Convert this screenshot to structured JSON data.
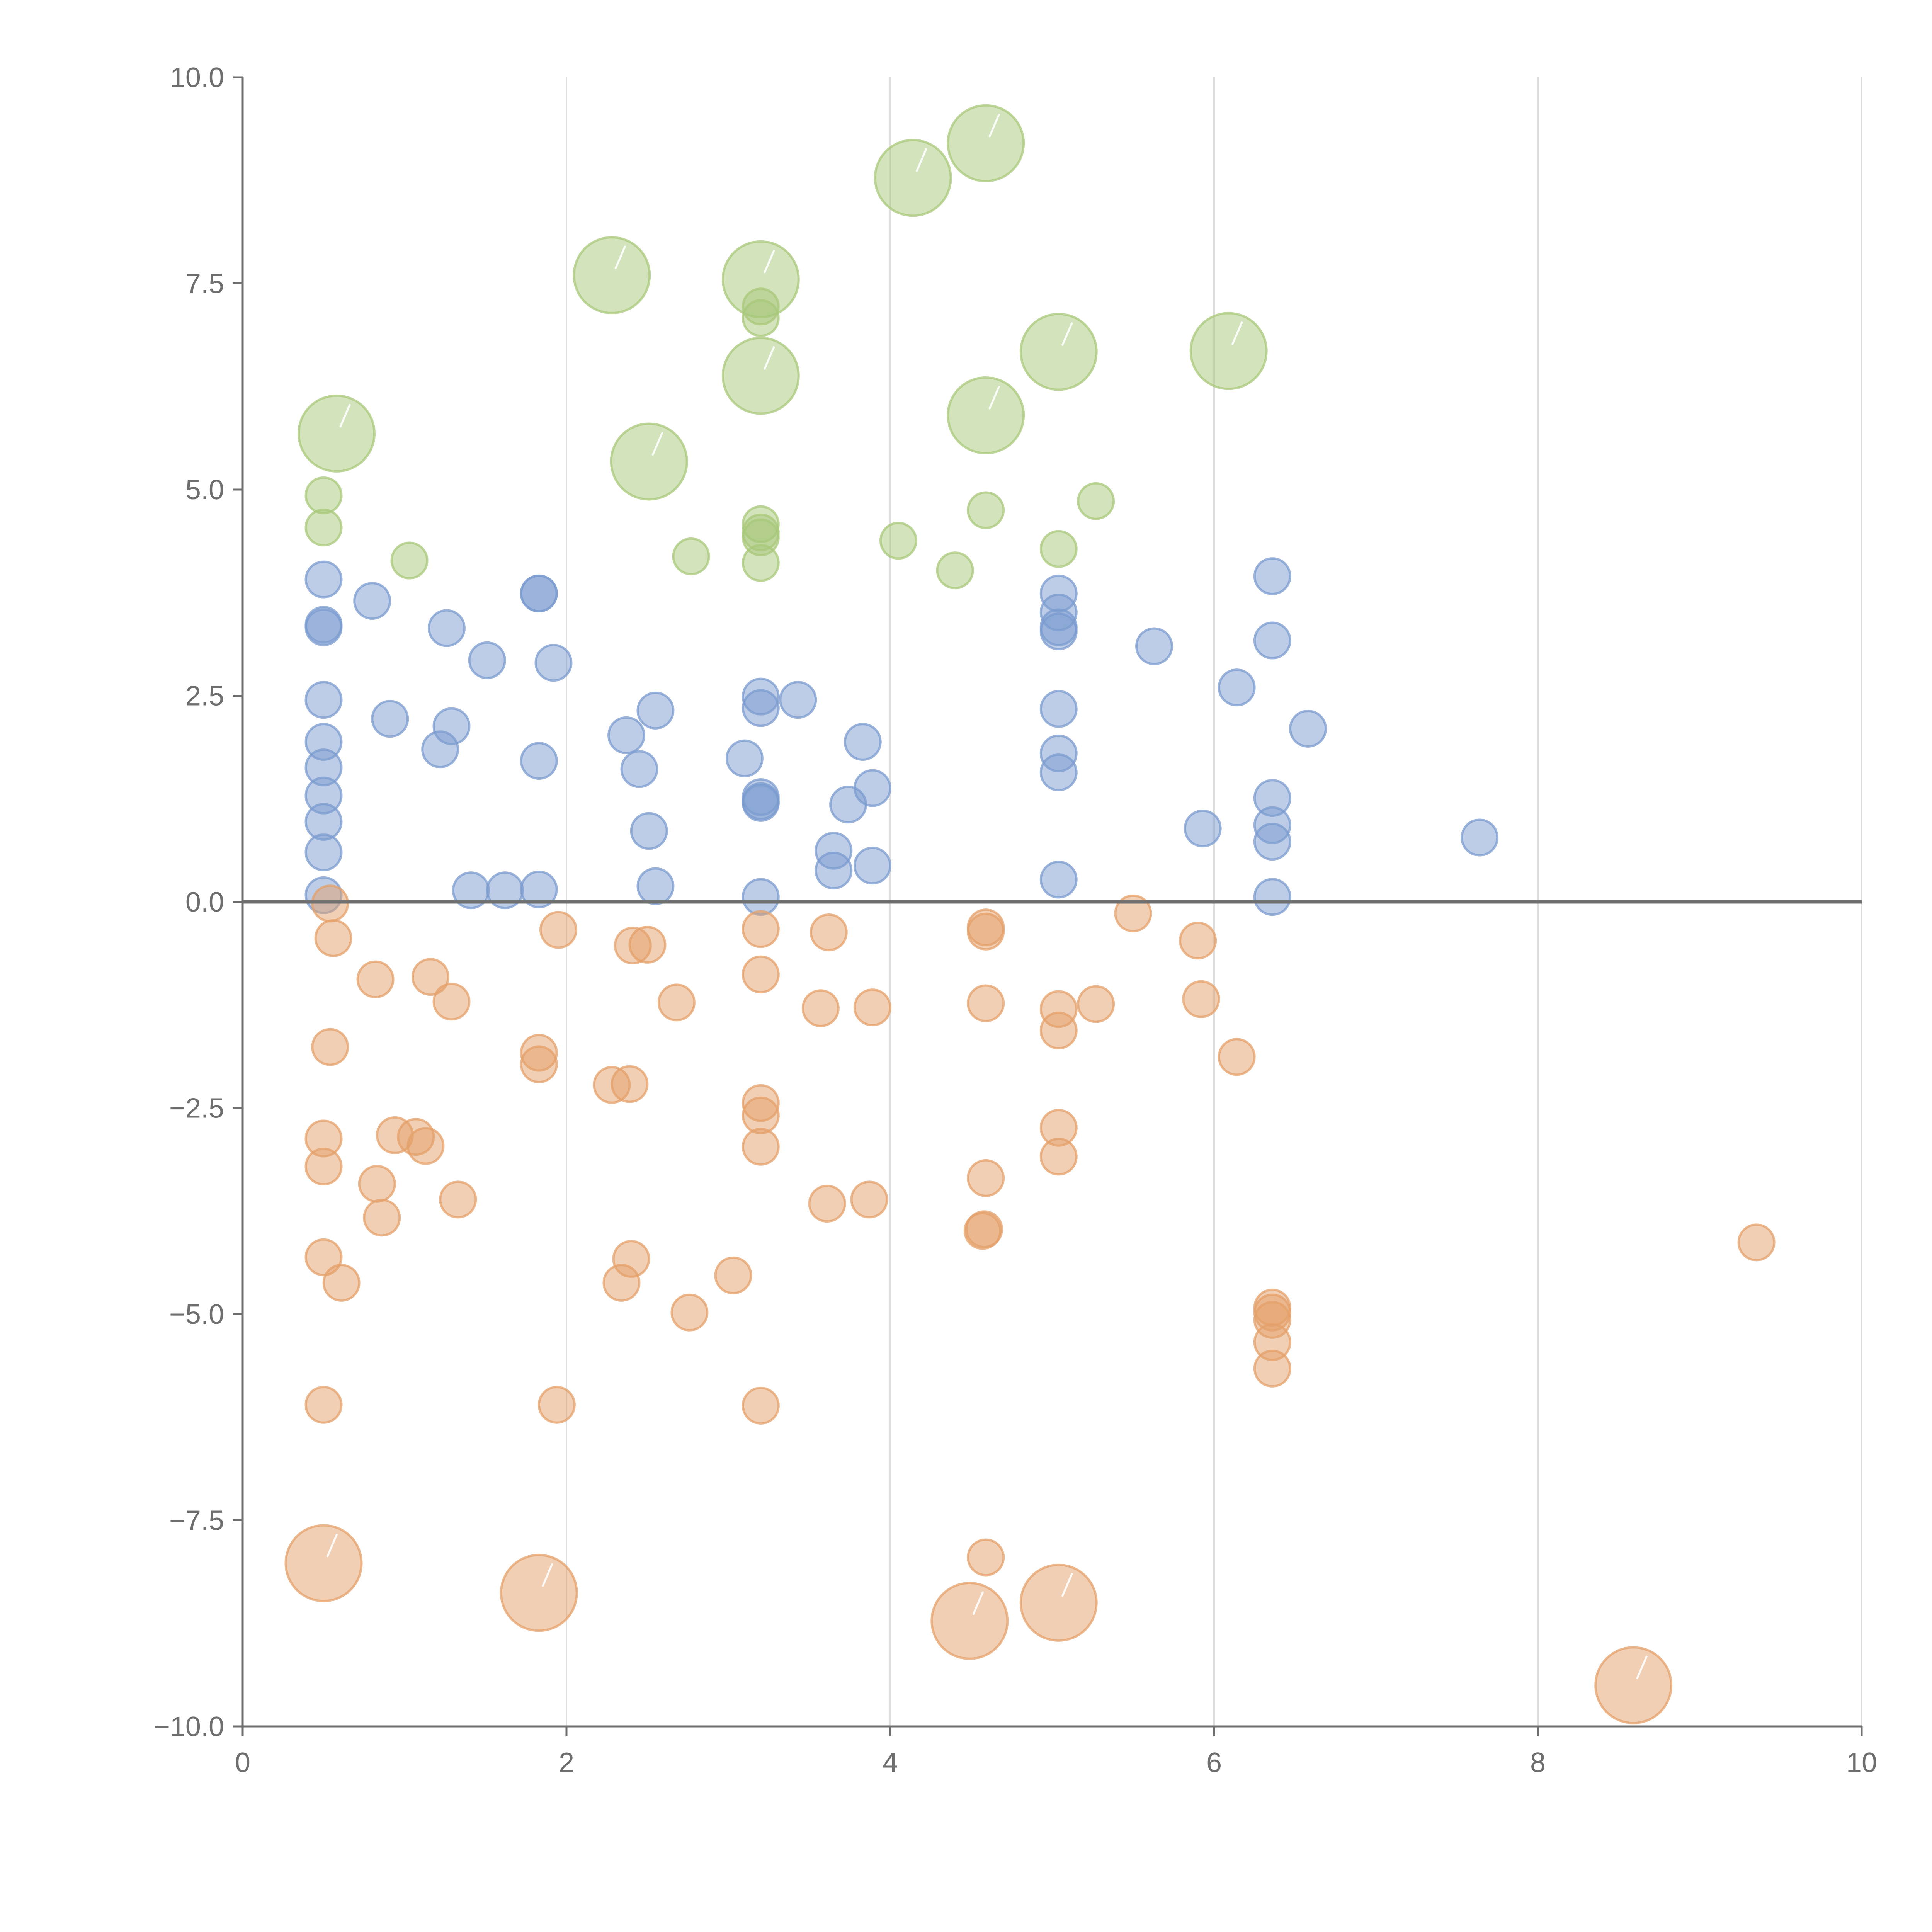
{
  "chart_data": {
    "type": "scatter",
    "title": "",
    "xlabel": "",
    "ylabel": "",
    "xlim": [
      0,
      10
    ],
    "ylim": [
      -10,
      10
    ],
    "x_ticks": [
      0,
      2,
      4,
      6,
      8,
      10
    ],
    "x_tick_labels": [
      "0",
      "2",
      "4",
      "6",
      "8",
      "10"
    ],
    "y_ticks": [
      10,
      7.5,
      5,
      2.5,
      0,
      -2.5,
      -5,
      -7.5,
      -10
    ],
    "y_tick_labels": [
      "10.0",
      "7.5",
      "5.0",
      "2.5",
      "0.0",
      "−2.5",
      "−5.0",
      "−7.5",
      "−10.0"
    ],
    "grid": "vertical lines at x ticks",
    "reference_line_y": 0,
    "colors": {
      "green": "#a8c87a",
      "blue": "#7b9bcf",
      "orange": "#e4a06a"
    },
    "series": [
      {
        "name": "green",
        "color": "#a8c87a",
        "points": [
          {
            "x": 4.59,
            "y": 9.2,
            "size": "large"
          },
          {
            "x": 4.14,
            "y": 8.78,
            "size": "large"
          },
          {
            "x": 2.28,
            "y": 7.6,
            "size": "large"
          },
          {
            "x": 3.2,
            "y": 7.55,
            "size": "large"
          },
          {
            "x": 3.2,
            "y": 7.22,
            "size": "small"
          },
          {
            "x": 3.2,
            "y": 7.08,
            "size": "small"
          },
          {
            "x": 5.04,
            "y": 6.67,
            "size": "large"
          },
          {
            "x": 6.09,
            "y": 6.68,
            "size": "large"
          },
          {
            "x": 3.2,
            "y": 6.38,
            "size": "large"
          },
          {
            "x": 4.59,
            "y": 5.9,
            "size": "large"
          },
          {
            "x": 0.58,
            "y": 5.68,
            "size": "large"
          },
          {
            "x": 2.51,
            "y": 5.34,
            "size": "large"
          },
          {
            "x": 0.5,
            "y": 4.93,
            "size": "small"
          },
          {
            "x": 0.5,
            "y": 4.54,
            "size": "small"
          },
          {
            "x": 1.03,
            "y": 4.14,
            "size": "small"
          },
          {
            "x": 2.77,
            "y": 4.19,
            "size": "small"
          },
          {
            "x": 3.2,
            "y": 4.58,
            "size": "small"
          },
          {
            "x": 3.2,
            "y": 4.48,
            "size": "small"
          },
          {
            "x": 3.2,
            "y": 4.42,
            "size": "small"
          },
          {
            "x": 3.2,
            "y": 4.11,
            "size": "small"
          },
          {
            "x": 4.05,
            "y": 4.38,
            "size": "small"
          },
          {
            "x": 4.4,
            "y": 4.02,
            "size": "small"
          },
          {
            "x": 4.59,
            "y": 4.75,
            "size": "small"
          },
          {
            "x": 5.04,
            "y": 4.28,
            "size": "small"
          },
          {
            "x": 5.27,
            "y": 4.86,
            "size": "small"
          }
        ]
      },
      {
        "name": "blue",
        "color": "#7b9bcf",
        "points": [
          {
            "x": 0.5,
            "y": 3.91
          },
          {
            "x": 0.5,
            "y": 3.36
          },
          {
            "x": 0.5,
            "y": 3.33
          },
          {
            "x": 0.5,
            "y": 2.45
          },
          {
            "x": 0.5,
            "y": 1.94
          },
          {
            "x": 0.5,
            "y": 1.63
          },
          {
            "x": 0.5,
            "y": 1.29
          },
          {
            "x": 0.5,
            "y": 0.97
          },
          {
            "x": 0.5,
            "y": 0.6
          },
          {
            "x": 0.5,
            "y": 0.08
          },
          {
            "x": 0.8,
            "y": 3.65
          },
          {
            "x": 0.91,
            "y": 2.22
          },
          {
            "x": 1.26,
            "y": 3.32
          },
          {
            "x": 1.22,
            "y": 1.85
          },
          {
            "x": 1.29,
            "y": 2.13
          },
          {
            "x": 1.51,
            "y": 2.93
          },
          {
            "x": 1.41,
            "y": 0.14
          },
          {
            "x": 1.62,
            "y": 0.14
          },
          {
            "x": 1.83,
            "y": 3.74
          },
          {
            "x": 1.83,
            "y": 3.74
          },
          {
            "x": 1.92,
            "y": 2.9
          },
          {
            "x": 1.83,
            "y": 1.71
          },
          {
            "x": 1.83,
            "y": 0.15
          },
          {
            "x": 2.37,
            "y": 2.02
          },
          {
            "x": 2.45,
            "y": 1.61
          },
          {
            "x": 2.55,
            "y": 2.32
          },
          {
            "x": 2.51,
            "y": 0.86
          },
          {
            "x": 2.55,
            "y": 0.19
          },
          {
            "x": 3.2,
            "y": 2.49
          },
          {
            "x": 3.2,
            "y": 2.35
          },
          {
            "x": 3.1,
            "y": 1.74
          },
          {
            "x": 3.43,
            "y": 2.45
          },
          {
            "x": 3.2,
            "y": 1.27
          },
          {
            "x": 3.2,
            "y": 1.22
          },
          {
            "x": 3.2,
            "y": 1.2
          },
          {
            "x": 3.2,
            "y": 0.06
          },
          {
            "x": 3.83,
            "y": 1.94
          },
          {
            "x": 3.89,
            "y": 1.38
          },
          {
            "x": 3.74,
            "y": 1.18
          },
          {
            "x": 3.65,
            "y": 0.62
          },
          {
            "x": 3.65,
            "y": 0.38
          },
          {
            "x": 3.89,
            "y": 0.44
          },
          {
            "x": 5.04,
            "y": 3.74
          },
          {
            "x": 5.04,
            "y": 3.51
          },
          {
            "x": 5.04,
            "y": 3.33
          },
          {
            "x": 5.04,
            "y": 3.28
          },
          {
            "x": 5.04,
            "y": 2.34
          },
          {
            "x": 5.04,
            "y": 1.8
          },
          {
            "x": 5.04,
            "y": 1.57
          },
          {
            "x": 5.04,
            "y": 0.27
          },
          {
            "x": 5.63,
            "y": 3.1
          },
          {
            "x": 5.93,
            "y": 0.89
          },
          {
            "x": 6.14,
            "y": 2.6
          },
          {
            "x": 6.36,
            "y": 3.95
          },
          {
            "x": 6.36,
            "y": 3.17
          },
          {
            "x": 6.36,
            "y": 1.26
          },
          {
            "x": 6.36,
            "y": 0.93
          },
          {
            "x": 6.36,
            "y": 0.73
          },
          {
            "x": 6.36,
            "y": 0.06
          },
          {
            "x": 6.58,
            "y": 2.1
          },
          {
            "x": 7.64,
            "y": 0.78
          }
        ]
      },
      {
        "name": "orange",
        "color": "#e4a06a",
        "points": [
          {
            "x": 0.54,
            "y": -0.02,
            "size": "small"
          },
          {
            "x": 0.56,
            "y": -0.44,
            "size": "small"
          },
          {
            "x": 0.82,
            "y": -0.94,
            "size": "small"
          },
          {
            "x": 1.16,
            "y": -0.91,
            "size": "small"
          },
          {
            "x": 1.29,
            "y": -1.21,
            "size": "small"
          },
          {
            "x": 1.95,
            "y": -0.34,
            "size": "small"
          },
          {
            "x": 0.54,
            "y": -1.76,
            "size": "small"
          },
          {
            "x": 1.83,
            "y": -1.83,
            "size": "small"
          },
          {
            "x": 1.83,
            "y": -1.97,
            "size": "small"
          },
          {
            "x": 0.5,
            "y": -2.87,
            "size": "small"
          },
          {
            "x": 0.5,
            "y": -3.21,
            "size": "small"
          },
          {
            "x": 0.94,
            "y": -2.83,
            "size": "small"
          },
          {
            "x": 1.07,
            "y": -2.85,
            "size": "small"
          },
          {
            "x": 1.13,
            "y": -2.96,
            "size": "small"
          },
          {
            "x": 0.83,
            "y": -3.42,
            "size": "small"
          },
          {
            "x": 0.86,
            "y": -3.83,
            "size": "small"
          },
          {
            "x": 1.33,
            "y": -3.61,
            "size": "small"
          },
          {
            "x": 0.5,
            "y": -4.31,
            "size": "small"
          },
          {
            "x": 0.61,
            "y": -4.62,
            "size": "small"
          },
          {
            "x": 0.5,
            "y": -6.1,
            "size": "small"
          },
          {
            "x": 1.94,
            "y": -6.1,
            "size": "small"
          },
          {
            "x": 2.41,
            "y": -0.53,
            "size": "small"
          },
          {
            "x": 2.5,
            "y": -0.52,
            "size": "small"
          },
          {
            "x": 2.68,
            "y": -1.22,
            "size": "small"
          },
          {
            "x": 2.28,
            "y": -2.22,
            "size": "small"
          },
          {
            "x": 2.39,
            "y": -2.21,
            "size": "small"
          },
          {
            "x": 2.4,
            "y": -4.33,
            "size": "small"
          },
          {
            "x": 2.34,
            "y": -4.62,
            "size": "small"
          },
          {
            "x": 2.76,
            "y": -4.98,
            "size": "small"
          },
          {
            "x": 3.2,
            "y": -0.33,
            "size": "small"
          },
          {
            "x": 3.2,
            "y": -0.88,
            "size": "small"
          },
          {
            "x": 3.2,
            "y": -2.44,
            "size": "small"
          },
          {
            "x": 3.2,
            "y": -2.59,
            "size": "small"
          },
          {
            "x": 3.2,
            "y": -2.97,
            "size": "small"
          },
          {
            "x": 3.03,
            "y": -4.53,
            "size": "small"
          },
          {
            "x": 3.2,
            "y": -6.11,
            "size": "small"
          },
          {
            "x": 3.62,
            "y": -0.37,
            "size": "small"
          },
          {
            "x": 3.57,
            "y": -1.29,
            "size": "small"
          },
          {
            "x": 3.89,
            "y": -1.28,
            "size": "small"
          },
          {
            "x": 3.61,
            "y": -3.66,
            "size": "small"
          },
          {
            "x": 3.87,
            "y": -3.61,
            "size": "small"
          },
          {
            "x": 4.59,
            "y": -0.31,
            "size": "small"
          },
          {
            "x": 4.59,
            "y": -0.36,
            "size": "small"
          },
          {
            "x": 4.59,
            "y": -1.23,
            "size": "small"
          },
          {
            "x": 4.59,
            "y": -3.35,
            "size": "small"
          },
          {
            "x": 4.58,
            "y": -3.97,
            "size": "small"
          },
          {
            "x": 4.57,
            "y": -3.99,
            "size": "small"
          },
          {
            "x": 4.59,
            "y": -7.95,
            "size": "small"
          },
          {
            "x": 5.04,
            "y": -1.3,
            "size": "small"
          },
          {
            "x": 5.04,
            "y": -1.56,
            "size": "small"
          },
          {
            "x": 5.04,
            "y": -2.74,
            "size": "small"
          },
          {
            "x": 5.04,
            "y": -3.09,
            "size": "small"
          },
          {
            "x": 5.27,
            "y": -1.24,
            "size": "small"
          },
          {
            "x": 5.5,
            "y": -0.14,
            "size": "small"
          },
          {
            "x": 5.9,
            "y": -0.47,
            "size": "small"
          },
          {
            "x": 5.92,
            "y": -1.18,
            "size": "small"
          },
          {
            "x": 6.14,
            "y": -1.88,
            "size": "small"
          },
          {
            "x": 6.36,
            "y": -4.92,
            "size": "small"
          },
          {
            "x": 6.36,
            "y": -4.98,
            "size": "small"
          },
          {
            "x": 6.36,
            "y": -5.07,
            "size": "small"
          },
          {
            "x": 6.36,
            "y": -5.34,
            "size": "small"
          },
          {
            "x": 6.36,
            "y": -5.66,
            "size": "small"
          },
          {
            "x": 9.35,
            "y": -4.13,
            "size": "small"
          },
          {
            "x": 0.5,
            "y": -8.02,
            "size": "large"
          },
          {
            "x": 1.83,
            "y": -8.38,
            "size": "large"
          },
          {
            "x": 4.49,
            "y": -8.72,
            "size": "large"
          },
          {
            "x": 5.04,
            "y": -8.5,
            "size": "large"
          },
          {
            "x": 8.59,
            "y": -9.5,
            "size": "large"
          }
        ]
      }
    ]
  }
}
